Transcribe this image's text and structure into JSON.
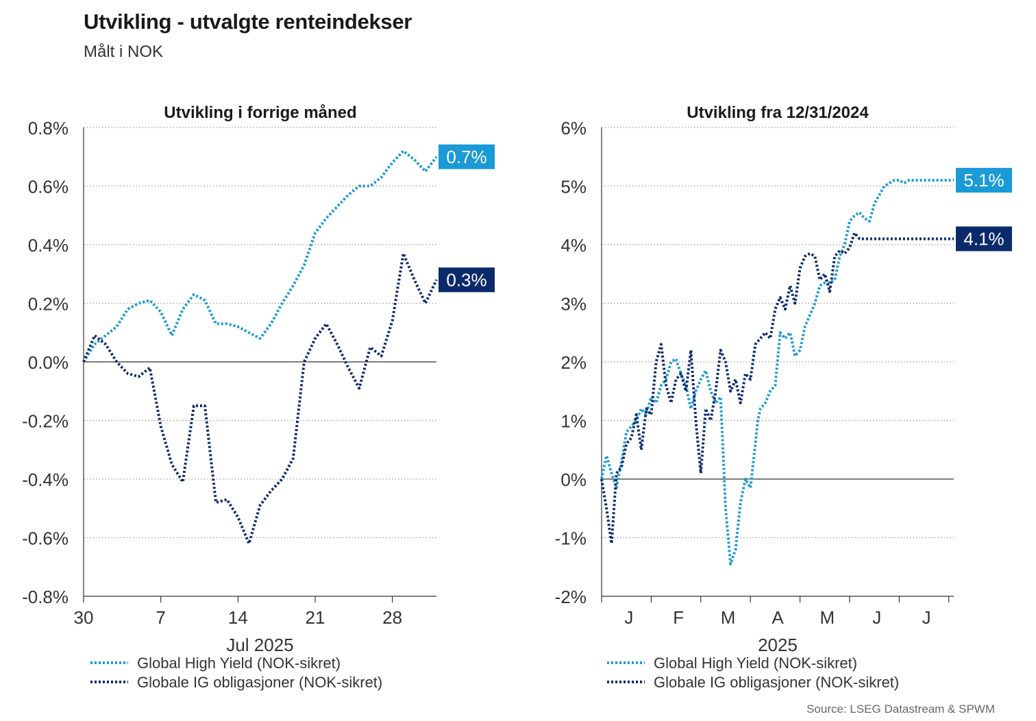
{
  "title": "Utvikling - utvalgte renteindekser",
  "subtitle": "Målt i NOK",
  "source": "Source: LSEG Datastream & SPWM",
  "colors": {
    "high_yield": "#1a9ad6",
    "ig": "#0b2a6b",
    "grid": "#9a9a9a",
    "axis": "#333333"
  },
  "chart_data": [
    {
      "type": "line",
      "title": "Utvikling i forrige måned",
      "xlabel": "Jul 2025",
      "ylabel": "",
      "ylim": [
        -0.8,
        0.8
      ],
      "yticks": [
        0.8,
        0.6,
        0.4,
        0.2,
        0.0,
        -0.2,
        -0.4,
        -0.6,
        -0.8
      ],
      "ytick_labels": [
        "0.8%",
        "0.6%",
        "0.4%",
        "0.2%",
        "0.0%",
        "-0.2%",
        "-0.4%",
        "-0.6%",
        "-0.8%"
      ],
      "xlim": [
        0,
        32
      ],
      "xticks": [
        0,
        7,
        14,
        21,
        28
      ],
      "xtick_labels": [
        "30",
        "7",
        "14",
        "21",
        "28"
      ],
      "series": [
        {
          "name": "Global High Yield (NOK-sikret)",
          "end_label": "0.7%",
          "x": [
            0,
            1,
            2,
            3,
            4,
            5,
            6,
            7,
            8,
            9,
            10,
            11,
            12,
            13,
            14,
            15,
            16,
            17,
            18,
            19,
            20,
            21,
            22,
            23,
            24,
            25,
            26,
            27,
            28,
            29,
            30,
            31,
            32
          ],
          "values": [
            0.0,
            0.06,
            0.09,
            0.12,
            0.18,
            0.2,
            0.21,
            0.17,
            0.09,
            0.18,
            0.23,
            0.21,
            0.13,
            0.13,
            0.12,
            0.1,
            0.08,
            0.13,
            0.2,
            0.26,
            0.33,
            0.44,
            0.49,
            0.53,
            0.57,
            0.6,
            0.6,
            0.63,
            0.68,
            0.72,
            0.69,
            0.65,
            0.7
          ]
        },
        {
          "name": "Globale IG obligasjoner (NOK-sikret)",
          "end_label": "0.3%",
          "x": [
            0,
            1,
            2,
            3,
            4,
            5,
            6,
            7,
            8,
            9,
            10,
            11,
            12,
            13,
            14,
            15,
            16,
            17,
            18,
            19,
            20,
            21,
            22,
            23,
            24,
            25,
            26,
            27,
            28,
            29,
            30,
            31,
            32
          ],
          "values": [
            0.0,
            0.09,
            0.06,
            0.0,
            -0.04,
            -0.05,
            -0.02,
            -0.22,
            -0.35,
            -0.41,
            -0.15,
            -0.15,
            -0.48,
            -0.47,
            -0.53,
            -0.62,
            -0.49,
            -0.44,
            -0.4,
            -0.33,
            0.0,
            0.08,
            0.13,
            0.06,
            -0.02,
            -0.09,
            0.05,
            0.02,
            0.14,
            0.37,
            0.28,
            0.2,
            0.28
          ]
        }
      ]
    },
    {
      "type": "line",
      "title": "Utvikling fra 12/31/2024",
      "xlabel": "2025",
      "ylabel": "",
      "ylim": [
        -2,
        6
      ],
      "yticks": [
        6,
        5,
        4,
        3,
        2,
        1,
        0,
        -1,
        -2
      ],
      "ytick_labels": [
        "6%",
        "5%",
        "4%",
        "3%",
        "2%",
        "1%",
        "0%",
        "-1%",
        "-2%"
      ],
      "xlim": [
        0,
        7.1
      ],
      "month_boundaries": [
        0,
        1,
        2,
        3,
        4,
        5,
        6,
        7
      ],
      "month_labels": [
        "J",
        "F",
        "M",
        "A",
        "M",
        "J",
        "J"
      ],
      "series": [
        {
          "name": "Global High Yield (NOK-sikret)",
          "end_label": "5.1%",
          "x": [
            0,
            0.1,
            0.2,
            0.3,
            0.4,
            0.5,
            0.6,
            0.7,
            0.8,
            0.9,
            1.0,
            1.1,
            1.2,
            1.3,
            1.4,
            1.5,
            1.6,
            1.7,
            1.8,
            1.9,
            2.0,
            2.1,
            2.2,
            2.3,
            2.4,
            2.5,
            2.6,
            2.7,
            2.8,
            2.9,
            3.0,
            3.1,
            3.15,
            3.2,
            3.3,
            3.4,
            3.5,
            3.6,
            3.7,
            3.8,
            3.9,
            4.0,
            4.1,
            4.2,
            4.3,
            4.4,
            4.5,
            4.6,
            4.7,
            4.8,
            4.9,
            5.0,
            5.1,
            5.2,
            5.3,
            5.4,
            5.5,
            5.6,
            5.7,
            5.8,
            5.9,
            6.0,
            6.1,
            6.2,
            6.3,
            6.4,
            6.5,
            6.6,
            6.7,
            6.8,
            6.9,
            7.0,
            7.1
          ],
          "values": [
            0.0,
            0.4,
            0.1,
            -0.15,
            0.3,
            0.8,
            0.9,
            1.0,
            1.2,
            1.1,
            1.4,
            1.3,
            1.6,
            1.7,
            2.0,
            2.05,
            1.8,
            1.6,
            1.2,
            1.5,
            1.7,
            1.85,
            1.5,
            1.3,
            1.4,
            -0.5,
            -1.45,
            -1.2,
            -0.4,
            0.0,
            -0.15,
            0.6,
            1.0,
            1.2,
            1.3,
            1.5,
            1.6,
            2.5,
            2.4,
            2.5,
            2.1,
            2.2,
            2.6,
            2.8,
            3.0,
            3.3,
            3.35,
            3.35,
            3.4,
            3.8,
            4.0,
            4.4,
            4.5,
            4.55,
            4.45,
            4.4,
            4.7,
            4.85,
            5.0,
            5.05,
            5.1,
            5.1,
            5.05,
            5.1,
            5.1,
            5.1,
            5.1,
            5.1,
            5.1,
            5.1,
            5.1,
            5.1,
            5.1
          ]
        },
        {
          "name": "Globale IG obligasjoner (NOK-sikret)",
          "end_label": "4.1%",
          "x": [
            0,
            0.1,
            0.2,
            0.3,
            0.4,
            0.5,
            0.6,
            0.7,
            0.8,
            0.9,
            1.0,
            1.1,
            1.2,
            1.3,
            1.4,
            1.5,
            1.6,
            1.7,
            1.8,
            1.9,
            2.0,
            2.1,
            2.2,
            2.3,
            2.4,
            2.5,
            2.6,
            2.7,
            2.8,
            2.9,
            3.0,
            3.1,
            3.2,
            3.3,
            3.4,
            3.5,
            3.6,
            3.7,
            3.8,
            3.9,
            4.0,
            4.1,
            4.2,
            4.3,
            4.4,
            4.5,
            4.6,
            4.7,
            4.8,
            4.9,
            5.0,
            5.1,
            5.2,
            5.3,
            5.4,
            5.5,
            5.6,
            5.7,
            5.8,
            5.9,
            6.0,
            6.1,
            6.2,
            6.3,
            6.4,
            6.5,
            6.6,
            6.7,
            6.8,
            6.9,
            7.0,
            7.1
          ],
          "values": [
            0.0,
            -0.5,
            -1.1,
            0.1,
            0.2,
            0.6,
            0.7,
            1.1,
            0.5,
            1.2,
            1.1,
            2.0,
            2.3,
            1.6,
            1.3,
            1.7,
            1.8,
            1.5,
            2.2,
            1.0,
            0.1,
            1.2,
            1.0,
            1.5,
            2.2,
            2.0,
            1.5,
            1.7,
            1.3,
            1.8,
            1.7,
            2.3,
            2.4,
            2.5,
            2.4,
            2.9,
            3.1,
            2.9,
            3.3,
            3.0,
            3.6,
            3.8,
            3.85,
            3.8,
            3.4,
            3.5,
            3.2,
            3.8,
            3.9,
            3.85,
            3.95,
            4.2,
            4.1,
            4.1,
            4.1,
            4.1,
            4.1,
            4.1,
            4.1,
            4.1,
            4.1,
            4.1,
            4.1,
            4.1,
            4.1,
            4.1,
            4.1,
            4.1,
            4.1,
            4.1,
            4.1,
            4.1
          ]
        }
      ]
    }
  ]
}
